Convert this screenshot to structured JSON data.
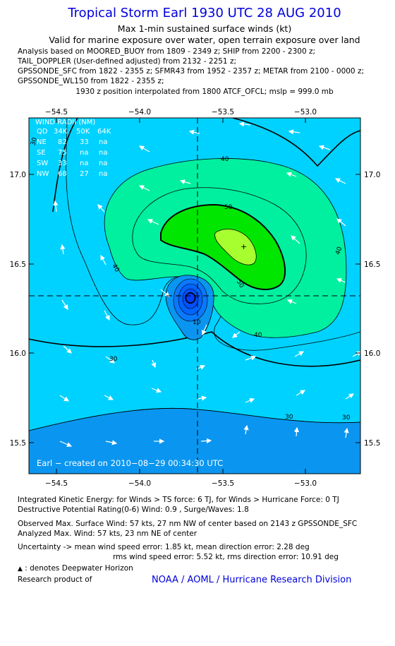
{
  "header": {
    "title": "Tropical Storm Earl 1930 UTC 28 AUG 2010",
    "subtitle": "Max 1-min sustained surface winds (kt)",
    "validity": "Valid for marine exposure over water, open terrain exposure over land",
    "analysis_lines": [
      "Analysis based on MOORED_BUOY from 1809 - 2349 z; SHIP from 2200 - 2300 z;",
      "TAIL_DOPPLER (User-defined adjusted) from 2132 - 2251 z;",
      "GPSSONDE_SFC from 1822 - 2355 z; SFMR43 from 1952 - 2357 z; METAR from 2100 - 0000 z;",
      "GPSSONDE_WL150 from 1822 - 2355 z;"
    ],
    "position_note": "1930 z position interpolated from 1800 ATCF_OFCL; mslp = 999.0 mb"
  },
  "map": {
    "lon_ticks": [
      "−54.5",
      "−54.0",
      "−53.5",
      "−53.0"
    ],
    "lat_ticks": [
      "17.0",
      "16.5",
      "16.0",
      "15.5"
    ],
    "contour_labels": [
      "40",
      "50",
      "40",
      "40",
      "50",
      "10",
      "40",
      "30",
      "30",
      "30"
    ],
    "created": "Earl − created on 2010−08−29 00:34:30 UTC",
    "wind_radii": {
      "title": "WIND RADII (NM)",
      "header": [
        "QD",
        "34K",
        "50K",
        "64K"
      ],
      "rows": [
        [
          "NE",
          "82",
          "33",
          "na"
        ],
        [
          "SE",
          "75",
          "na",
          "na"
        ],
        [
          "SW",
          "33",
          "na",
          "na"
        ],
        [
          "NW",
          "68",
          "27",
          "na"
        ]
      ]
    },
    "side_label": "30",
    "colors": {
      "below_30": "#0a96f0",
      "w30_40": "#00d2ff",
      "w40_50": "#00f0a0",
      "w50_60": "#00e600",
      "w60_plus": "#a8ff30",
      "core": "#0050ff"
    }
  },
  "footer": {
    "ike": "Integrated Kinetic Energy:  for Winds > TS force: 6 TJ,  for Winds > Hurricane Force: 0 TJ",
    "destructive": "Destructive Potential Rating(0-6)   Wind: 0.9 , Surge/Waves: 1.8",
    "observed": "Observed Max. Surface Wind: 57 kts, 27 nm NW of center based on 2143 z GPSSONDE_SFC",
    "analyzed": "Analyzed Max. Wind: 57 kts, 23 nm NE of center",
    "uncertainty1": "Uncertainty -> mean wind speed error: 1.85 kt,   mean direction error: 2.28 deg",
    "uncertainty2": "rms wind speed error: 5.52 kt,   rms direction error: 10.91 deg",
    "legend": ": denotes Deepwater Horizon",
    "research": "Research product of",
    "credit": "NOAA / AOML / Hurricane Research Division"
  }
}
